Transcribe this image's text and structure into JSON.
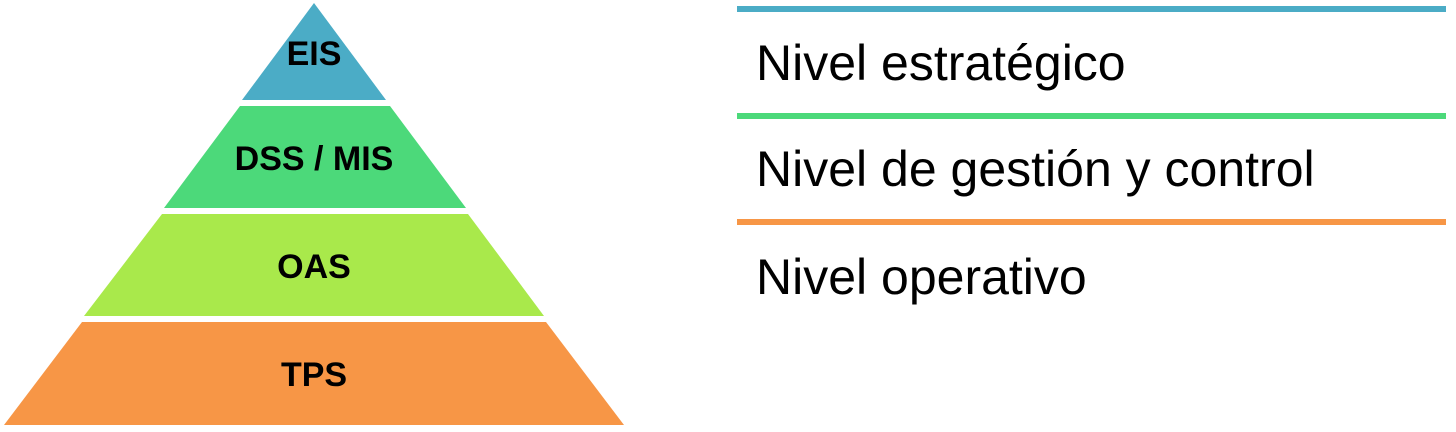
{
  "pyramid": {
    "tiers": [
      {
        "label": "EIS",
        "color": "#4BACC6"
      },
      {
        "label": "DSS / MIS",
        "color": "#4CD97A"
      },
      {
        "label": "OAS",
        "color": "#A9E94B"
      },
      {
        "label": "TPS",
        "color": "#F79646"
      }
    ]
  },
  "levels": [
    {
      "label": "Nivel estratégico",
      "rule_color": "#4BACC6"
    },
    {
      "label": "Nivel de gestión y control",
      "rule_color": "#4CD97A"
    },
    {
      "label": "Nivel operativo",
      "rule_color": "#F79646"
    }
  ]
}
